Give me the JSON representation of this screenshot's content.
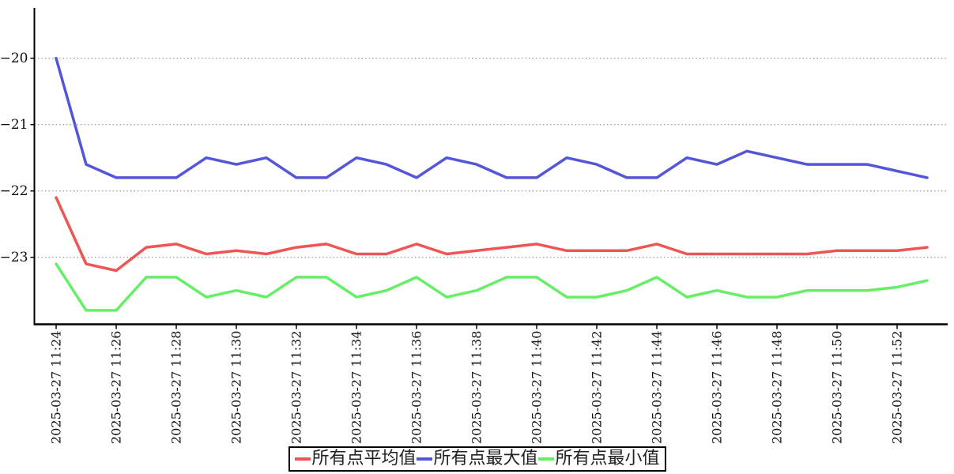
{
  "chart_data": {
    "type": "line",
    "title": "",
    "xlabel": "",
    "ylabel": "",
    "grid": "horizontal-dotted",
    "legend_position": "bottom-center",
    "axis_color": "#000000",
    "grid_color": "#808080",
    "background_color": "#ffffff",
    "y_ticks": [
      -20,
      -21,
      -22,
      -23
    ],
    "ylim": [
      -24.05,
      -19.25
    ],
    "x_tick_labels": [
      "2025-03-27 11:24",
      "2025-03-27 11:26",
      "2025-03-27 11:28",
      "2025-03-27 11:30",
      "2025-03-27 11:32",
      "2025-03-27 11:34",
      "2025-03-27 11:36",
      "2025-03-27 11:38",
      "2025-03-27 11:40",
      "2025-03-27 11:42",
      "2025-03-27 11:44",
      "2025-03-27 11:46",
      "2025-03-27 11:48",
      "2025-03-27 11:50",
      "2025-03-27 11:52"
    ],
    "points_per_tick": 2,
    "series": [
      {
        "name": "所有点平均值",
        "color": "#ee5555",
        "values": [
          -22.1,
          -23.1,
          -23.2,
          -22.85,
          -22.8,
          -22.95,
          -22.9,
          -22.95,
          -22.85,
          -22.8,
          -22.95,
          -22.95,
          -22.8,
          -22.95,
          -22.9,
          -22.85,
          -22.8,
          -22.9,
          -22.9,
          -22.9,
          -22.8,
          -22.95,
          -22.95,
          -22.95,
          -22.95,
          -22.95,
          -22.9,
          -22.9,
          -22.9,
          -22.85
        ]
      },
      {
        "name": "所有点最大值",
        "color": "#5555d8",
        "values": [
          -20.0,
          -21.6,
          -21.8,
          -21.8,
          -21.8,
          -21.5,
          -21.6,
          -21.5,
          -21.8,
          -21.8,
          -21.5,
          -21.6,
          -21.8,
          -21.5,
          -21.6,
          -21.8,
          -21.8,
          -21.5,
          -21.6,
          -21.8,
          -21.8,
          -21.5,
          -21.6,
          -21.4,
          -21.5,
          -21.6,
          -21.6,
          -21.6,
          -21.7,
          -21.8
        ]
      },
      {
        "name": "所有点最小值",
        "color": "#66ee66",
        "values": [
          -23.1,
          -23.8,
          -23.8,
          -23.3,
          -23.3,
          -23.6,
          -23.5,
          -23.6,
          -23.3,
          -23.3,
          -23.6,
          -23.5,
          -23.3,
          -23.6,
          -23.5,
          -23.3,
          -23.3,
          -23.6,
          -23.6,
          -23.5,
          -23.3,
          -23.6,
          -23.5,
          -23.6,
          -23.6,
          -23.5,
          -23.5,
          -23.5,
          -23.45,
          -23.35
        ]
      }
    ]
  }
}
